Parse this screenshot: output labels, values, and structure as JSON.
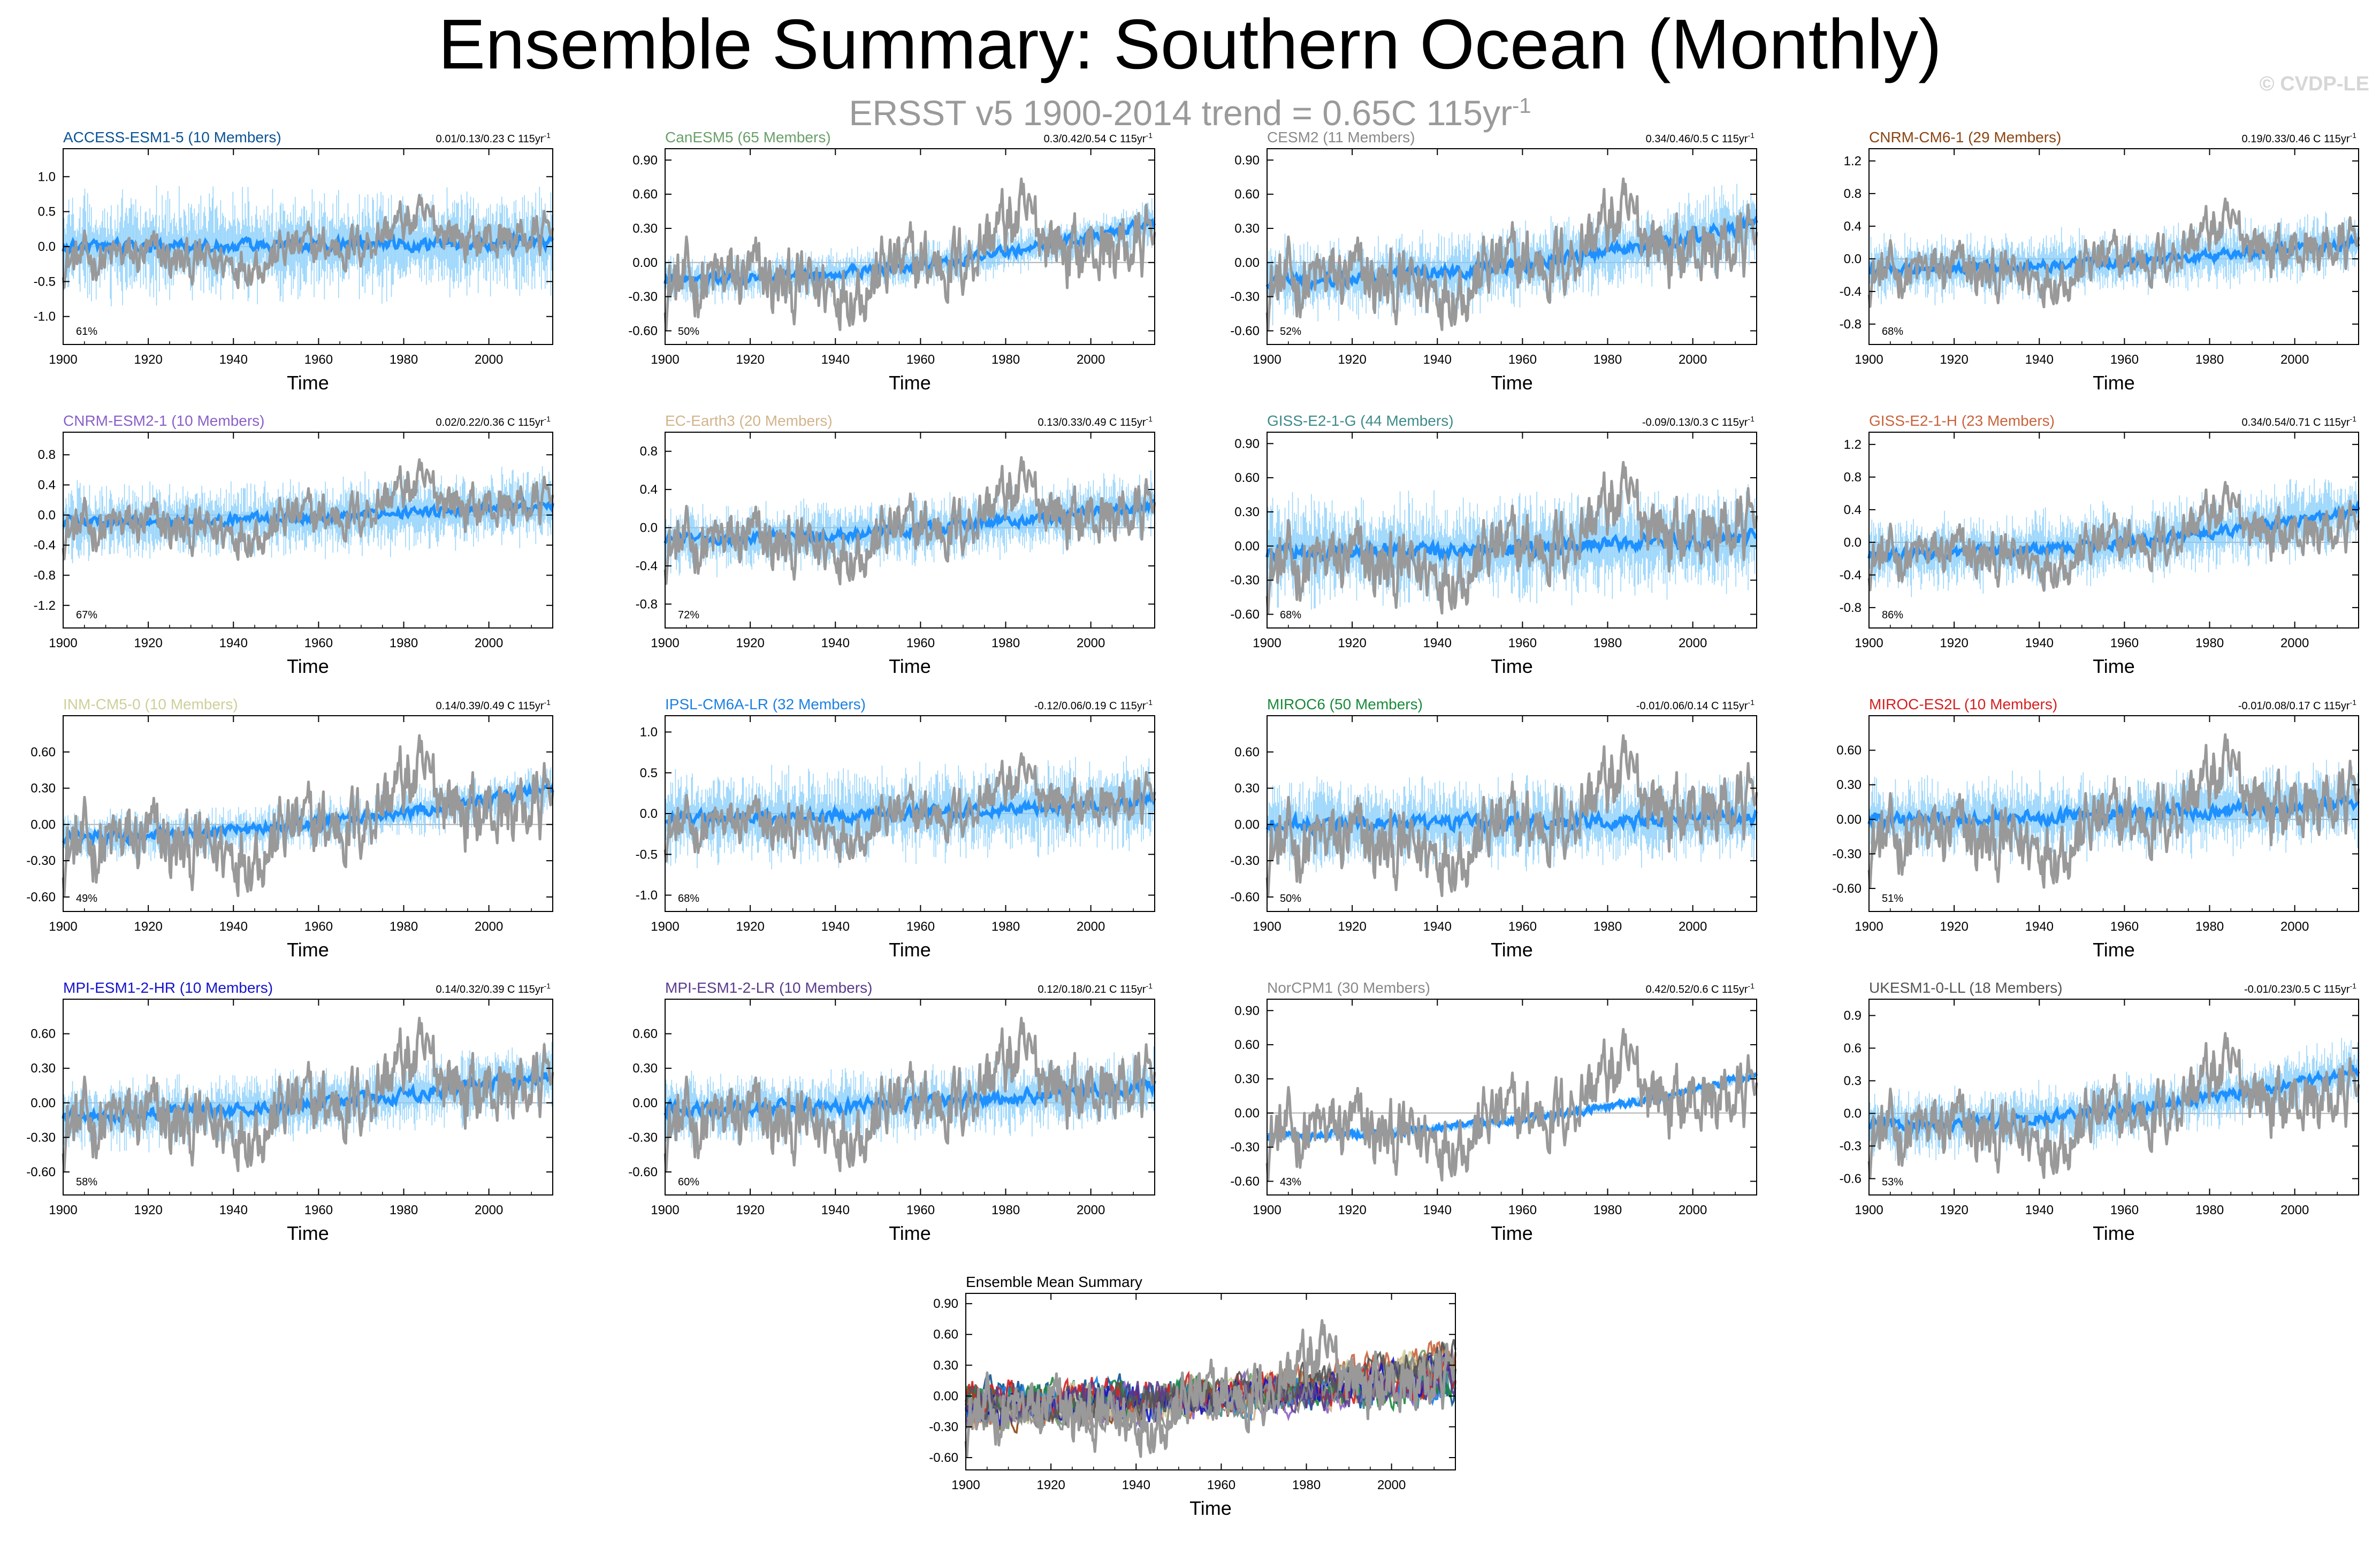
{
  "header": {
    "title": "Ensemble Summary: Southern Ocean (Monthly)",
    "subtitle_main": "ERSST v5 1900-2014 trend = 0.65C 115yr",
    "subtitle_sup": "-1",
    "copyright": "© CVDP-LE"
  },
  "colors": {
    "observed": "#999999",
    "ensemble_mean": "#1e90ff",
    "ensemble_spread": "#87cefa",
    "zero_line": "#b0b0b0"
  },
  "chart_data": [
    {
      "type": "line",
      "model": "ACCESS-ESM1-5",
      "title": "ACCESS-ESM1-5 (10 Members)",
      "title_color": "#0b5394",
      "trend_text": "0.01/0.13/0.23 C 115yr",
      "trend_sup": "-1",
      "percent": "61%",
      "xlabel": "Time",
      "x_ticks": [
        "1900",
        "1920",
        "1940",
        "1960",
        "1980",
        "2000"
      ],
      "y_ticks": [
        "1.0",
        "0.5",
        "0.0",
        "-0.5",
        "-1.0"
      ],
      "ylim": [
        -1.4,
        1.4
      ],
      "ensemble_mean_start": 0.0,
      "ensemble_mean_end": 0.07,
      "spread": 0.75
    },
    {
      "type": "line",
      "model": "CanESM5",
      "title": "CanESM5 (65 Members)",
      "title_color": "#6aa06a",
      "trend_text": "0.3/0.42/0.54 C 115yr",
      "trend_sup": "-1",
      "percent": "50%",
      "xlabel": "Time",
      "x_ticks": [
        "1900",
        "1920",
        "1940",
        "1960",
        "1980",
        "2000"
      ],
      "y_ticks": [
        "0.90",
        "0.60",
        "0.30",
        "0.00",
        "-0.30",
        "-0.60"
      ],
      "ylim": [
        -0.72,
        1.0
      ],
      "ensemble_mean_start": -0.15,
      "ensemble_mean_end": 0.35,
      "spread": 0.2
    },
    {
      "type": "line",
      "model": "CESM2",
      "title": "CESM2 (11 Members)",
      "title_color": "#8a8a8a",
      "trend_text": "0.34/0.46/0.5 C 115yr",
      "trend_sup": "-1",
      "percent": "52%",
      "xlabel": "Time",
      "x_ticks": [
        "1900",
        "1920",
        "1940",
        "1960",
        "1980",
        "2000"
      ],
      "y_ticks": [
        "0.90",
        "0.60",
        "0.30",
        "0.00",
        "-0.30",
        "-0.60"
      ],
      "ylim": [
        -0.72,
        1.0
      ],
      "ensemble_mean_start": -0.15,
      "ensemble_mean_end": 0.35,
      "spread": 0.35
    },
    {
      "type": "line",
      "model": "CNRM-CM6-1",
      "title": "CNRM-CM6-1 (29 Members)",
      "title_color": "#8b4513",
      "trend_text": "0.19/0.33/0.46 C 115yr",
      "trend_sup": "-1",
      "percent": "68%",
      "xlabel": "Time",
      "x_ticks": [
        "1900",
        "1920",
        "1940",
        "1960",
        "1980",
        "2000"
      ],
      "y_ticks": [
        "1.2",
        "0.8",
        "0.4",
        "0.0",
        "-0.4",
        "-0.8"
      ],
      "ylim": [
        -1.05,
        1.35
      ],
      "ensemble_mean_start": -0.12,
      "ensemble_mean_end": 0.2,
      "spread": 0.4
    },
    {
      "type": "line",
      "model": "CNRM-ESM2-1",
      "title": "CNRM-ESM2-1 (10 Members)",
      "title_color": "#8a60c8",
      "trend_text": "0.02/0.22/0.36 C 115yr",
      "trend_sup": "-1",
      "percent": "67%",
      "xlabel": "Time",
      "x_ticks": [
        "1900",
        "1920",
        "1940",
        "1960",
        "1980",
        "2000"
      ],
      "y_ticks": [
        "0.8",
        "0.4",
        "0.0",
        "-0.4",
        "-0.8",
        "-1.2"
      ],
      "ylim": [
        -1.5,
        1.1
      ],
      "ensemble_mean_start": -0.1,
      "ensemble_mean_end": 0.15,
      "spread": 0.5
    },
    {
      "type": "line",
      "model": "EC-Earth3",
      "title": "EC-Earth3 (20 Members)",
      "title_color": "#d2b48c",
      "trend_text": "0.13/0.33/0.49 C 115yr",
      "trend_sup": "-1",
      "percent": "72%",
      "xlabel": "Time",
      "x_ticks": [
        "1900",
        "1920",
        "1940",
        "1960",
        "1980",
        "2000"
      ],
      "y_ticks": [
        "0.8",
        "0.4",
        "0.0",
        "-0.4",
        "-0.8"
      ],
      "ylim": [
        -1.05,
        1.0
      ],
      "ensemble_mean_start": -0.12,
      "ensemble_mean_end": 0.25,
      "spread": 0.35
    },
    {
      "type": "line",
      "model": "GISS-E2-1-G",
      "title": "GISS-E2-1-G (44 Members)",
      "title_color": "#3f8a8a",
      "trend_text": "-0.09/0.13/0.3 C 115yr",
      "trend_sup": "-1",
      "percent": "68%",
      "xlabel": "Time",
      "x_ticks": [
        "1900",
        "1920",
        "1940",
        "1960",
        "1980",
        "2000"
      ],
      "y_ticks": [
        "0.90",
        "0.60",
        "0.30",
        "0.00",
        "-0.30",
        "-0.60"
      ],
      "ylim": [
        -0.72,
        1.0
      ],
      "ensemble_mean_start": -0.05,
      "ensemble_mean_end": 0.08,
      "spread": 0.45
    },
    {
      "type": "line",
      "model": "GISS-E2-1-H",
      "title": "GISS-E2-1-H (23 Members)",
      "title_color": "#c8643c",
      "trend_text": "0.34/0.54/0.71 C 115yr",
      "trend_sup": "-1",
      "percent": "86%",
      "xlabel": "Time",
      "x_ticks": [
        "1900",
        "1920",
        "1940",
        "1960",
        "1980",
        "2000"
      ],
      "y_ticks": [
        "1.2",
        "0.8",
        "0.4",
        "0.0",
        "-0.4",
        "-0.8"
      ],
      "ylim": [
        -1.05,
        1.35
      ],
      "ensemble_mean_start": -0.15,
      "ensemble_mean_end": 0.4,
      "spread": 0.45
    },
    {
      "type": "line",
      "model": "INM-CM5-0",
      "title": "INM-CM5-0 (10 Members)",
      "title_color": "#cfcf9a",
      "trend_text": "0.14/0.39/0.49 C 115yr",
      "trend_sup": "-1",
      "percent": "49%",
      "xlabel": "Time",
      "x_ticks": [
        "1900",
        "1920",
        "1940",
        "1960",
        "1980",
        "2000"
      ],
      "y_ticks": [
        "0.60",
        "0.30",
        "0.00",
        "-0.30",
        "-0.60"
      ],
      "ylim": [
        -0.72,
        0.9
      ],
      "ensemble_mean_start": -0.1,
      "ensemble_mean_end": 0.3,
      "spread": 0.2
    },
    {
      "type": "line",
      "model": "IPSL-CM6A-LR",
      "title": "IPSL-CM6A-LR (32 Members)",
      "title_color": "#1e80e0",
      "trend_text": "-0.12/0.06/0.19 C 115yr",
      "trend_sup": "-1",
      "percent": "68%",
      "xlabel": "Time",
      "x_ticks": [
        "1900",
        "1920",
        "1940",
        "1960",
        "1980",
        "2000"
      ],
      "y_ticks": [
        "1.0",
        "0.5",
        "0.0",
        "-0.5",
        "-1.0"
      ],
      "ylim": [
        -1.2,
        1.2
      ],
      "ensemble_mean_start": -0.05,
      "ensemble_mean_end": 0.15,
      "spread": 0.55
    },
    {
      "type": "line",
      "model": "MIROC6",
      "title": "MIROC6 (50 Members)",
      "title_color": "#1a8a3a",
      "trend_text": "-0.01/0.06/0.14 C 115yr",
      "trend_sup": "-1",
      "percent": "50%",
      "xlabel": "Time",
      "x_ticks": [
        "1900",
        "1920",
        "1940",
        "1960",
        "1980",
        "2000"
      ],
      "y_ticks": [
        "0.60",
        "0.30",
        "0.00",
        "-0.30",
        "-0.60"
      ],
      "ylim": [
        -0.72,
        0.9
      ],
      "ensemble_mean_start": 0.0,
      "ensemble_mean_end": 0.06,
      "spread": 0.35
    },
    {
      "type": "line",
      "model": "MIROC-ES2L",
      "title": "MIROC-ES2L (10 Members)",
      "title_color": "#d42020",
      "trend_text": "-0.01/0.08/0.17 C 115yr",
      "trend_sup": "-1",
      "percent": "51%",
      "xlabel": "Time",
      "x_ticks": [
        "1900",
        "1920",
        "1940",
        "1960",
        "1980",
        "2000"
      ],
      "y_ticks": [
        "0.60",
        "0.30",
        "0.00",
        "-0.30",
        "-0.60"
      ],
      "ylim": [
        -0.8,
        0.9
      ],
      "ensemble_mean_start": 0.0,
      "ensemble_mean_end": 0.15,
      "spread": 0.35
    },
    {
      "type": "line",
      "model": "MPI-ESM1-2-HR",
      "title": "MPI-ESM1-2-HR (10 Members)",
      "title_color": "#1414c8",
      "trend_text": "0.14/0.32/0.39 C 115yr",
      "trend_sup": "-1",
      "percent": "58%",
      "xlabel": "Time",
      "x_ticks": [
        "1900",
        "1920",
        "1940",
        "1960",
        "1980",
        "2000"
      ],
      "y_ticks": [
        "0.60",
        "0.30",
        "0.00",
        "-0.30",
        "-0.60"
      ],
      "ylim": [
        -0.8,
        0.9
      ],
      "ensemble_mean_start": -0.1,
      "ensemble_mean_end": 0.25,
      "spread": 0.3
    },
    {
      "type": "line",
      "model": "MPI-ESM1-2-LR",
      "title": "MPI-ESM1-2-LR (10 Members)",
      "title_color": "#5a3c8c",
      "trend_text": "0.12/0.18/0.21 C 115yr",
      "trend_sup": "-1",
      "percent": "60%",
      "xlabel": "Time",
      "x_ticks": [
        "1900",
        "1920",
        "1940",
        "1960",
        "1980",
        "2000"
      ],
      "y_ticks": [
        "0.60",
        "0.30",
        "0.00",
        "-0.30",
        "-0.60"
      ],
      "ylim": [
        -0.8,
        0.9
      ],
      "ensemble_mean_start": -0.05,
      "ensemble_mean_end": 0.15,
      "spread": 0.3
    },
    {
      "type": "line",
      "model": "NorCPM1",
      "title": "NorCPM1 (30 Members)",
      "title_color": "#8a8a8a",
      "trend_text": "0.42/0.52/0.6 C 115yr",
      "trend_sup": "-1",
      "percent": "43%",
      "xlabel": "Time",
      "x_ticks": [
        "1900",
        "1920",
        "1940",
        "1960",
        "1980",
        "2000"
      ],
      "y_ticks": [
        "0.90",
        "0.60",
        "0.30",
        "0.00",
        "-0.30",
        "-0.60"
      ],
      "ylim": [
        -0.72,
        1.0
      ],
      "ensemble_mean_start": -0.2,
      "ensemble_mean_end": 0.33,
      "spread": 0.05
    },
    {
      "type": "line",
      "model": "UKESM1-0-LL",
      "title": "UKESM1-0-LL (18 Members)",
      "title_color": "#555555",
      "trend_text": "-0.01/0.23/0.5 C 115yr",
      "trend_sup": "-1",
      "percent": "53%",
      "xlabel": "Time",
      "x_ticks": [
        "1900",
        "1920",
        "1940",
        "1960",
        "1980",
        "2000"
      ],
      "y_ticks": [
        "0.9",
        "0.6",
        "0.3",
        "0.0",
        "-0.3",
        "-0.6"
      ],
      "ylim": [
        -0.75,
        1.05
      ],
      "ensemble_mean_start": -0.1,
      "ensemble_mean_end": 0.4,
      "spread": 0.3
    },
    {
      "type": "line",
      "model": "Ensemble Mean Summary",
      "title": "Ensemble Mean Summary",
      "title_color": "#000000",
      "trend_text": "",
      "trend_sup": "",
      "percent": "",
      "xlabel": "Time",
      "x_ticks": [
        "1900",
        "1920",
        "1940",
        "1960",
        "1980",
        "2000"
      ],
      "y_ticks": [
        "0.90",
        "0.60",
        "0.30",
        "0.00",
        "-0.30",
        "-0.60"
      ],
      "ylim": [
        -0.72,
        1.0
      ],
      "ensemble_mean_start": -0.1,
      "ensemble_mean_end": 0.3,
      "spread": 0.0
    }
  ],
  "x_range": [
    1900,
    2015
  ]
}
